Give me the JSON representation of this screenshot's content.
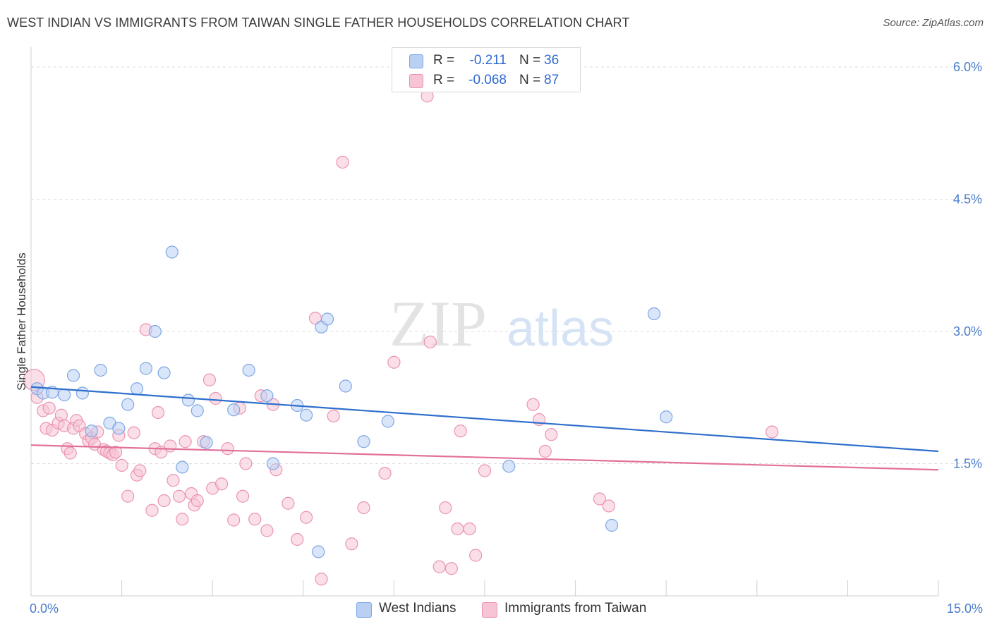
{
  "title": "WEST INDIAN VS IMMIGRANTS FROM TAIWAN SINGLE FATHER HOUSEHOLDS CORRELATION CHART",
  "source": "Source: ZipAtlas.com",
  "watermark": {
    "zip": "ZIP",
    "atlas": "atlas"
  },
  "legend": {
    "series1": {
      "r_label": "R =",
      "r_value": "-0.211",
      "n_label": "N =",
      "n_value": "36"
    },
    "series2": {
      "r_label": "R =",
      "r_value": "-0.068",
      "n_label": "N =",
      "n_value": "87"
    }
  },
  "bottom_legend": {
    "series1": "West Indians",
    "series2": "Immigrants from Taiwan"
  },
  "colors": {
    "blue_fill": "#b9d0f2",
    "blue_stroke": "#7ea7e4",
    "blue_line": "#2e6fcc",
    "pink_fill": "#f6c4d5",
    "pink_stroke": "#eb93b1",
    "pink_line": "#e2709a",
    "grid": "#dddddd",
    "tick_text": "#4a7cc9"
  },
  "chart_data": {
    "type": "scatter",
    "title": "WEST INDIAN VS IMMIGRANTS FROM TAIWAN SINGLE FATHER HOUSEHOLDS CORRELATION CHART",
    "xlabel": "",
    "ylabel": "Single Father Households",
    "xlim": [
      0,
      15
    ],
    "ylim": [
      0,
      6.2
    ],
    "x_tick_labels": [
      "0.0%",
      "15.0%"
    ],
    "y_ticks": [
      1.5,
      3.0,
      4.5,
      6.0
    ],
    "y_tick_labels": [
      "1.5%",
      "3.0%",
      "4.5%",
      "6.0%"
    ],
    "grid": true,
    "legend_position": "top-center",
    "series": [
      {
        "name": "West Indians",
        "trend": [
          [
            0,
            2.37
          ],
          [
            15,
            1.64
          ]
        ],
        "points": [
          [
            0.1,
            2.35
          ],
          [
            0.2,
            2.3
          ],
          [
            0.35,
            2.31
          ],
          [
            0.55,
            2.28
          ],
          [
            0.7,
            2.5
          ],
          [
            0.85,
            2.3
          ],
          [
            1.0,
            1.87
          ],
          [
            1.15,
            2.56
          ],
          [
            1.3,
            1.96
          ],
          [
            1.45,
            1.9
          ],
          [
            1.6,
            2.17
          ],
          [
            1.75,
            2.35
          ],
          [
            1.9,
            2.58
          ],
          [
            2.05,
            3.0
          ],
          [
            2.2,
            2.53
          ],
          [
            2.33,
            3.9
          ],
          [
            2.5,
            1.46
          ],
          [
            2.6,
            2.22
          ],
          [
            2.75,
            2.1
          ],
          [
            2.9,
            1.74
          ],
          [
            3.35,
            2.11
          ],
          [
            3.6,
            2.56
          ],
          [
            3.9,
            2.27
          ],
          [
            4.0,
            1.5
          ],
          [
            4.4,
            2.16
          ],
          [
            4.55,
            2.05
          ],
          [
            4.75,
            0.5
          ],
          [
            4.8,
            3.05
          ],
          [
            4.9,
            3.14
          ],
          [
            5.2,
            2.38
          ],
          [
            5.5,
            1.75
          ],
          [
            5.9,
            1.98
          ],
          [
            7.9,
            1.47
          ],
          [
            9.6,
            0.8
          ],
          [
            10.3,
            3.2
          ],
          [
            10.5,
            2.03
          ]
        ]
      },
      {
        "name": "Immigrants from Taiwan",
        "trend": [
          [
            0,
            1.71
          ],
          [
            15,
            1.43
          ]
        ],
        "points": [
          [
            0.05,
            2.45
          ],
          [
            0.1,
            2.25
          ],
          [
            0.2,
            2.1
          ],
          [
            0.25,
            1.9
          ],
          [
            0.3,
            2.13
          ],
          [
            0.35,
            1.88
          ],
          [
            0.45,
            1.96
          ],
          [
            0.5,
            2.05
          ],
          [
            0.55,
            1.93
          ],
          [
            0.6,
            1.67
          ],
          [
            0.65,
            1.62
          ],
          [
            0.7,
            1.9
          ],
          [
            0.75,
            1.99
          ],
          [
            0.8,
            1.93
          ],
          [
            0.9,
            1.84
          ],
          [
            0.95,
            1.76
          ],
          [
            1.0,
            1.79
          ],
          [
            1.05,
            1.72
          ],
          [
            1.1,
            1.86
          ],
          [
            1.2,
            1.66
          ],
          [
            1.25,
            1.64
          ],
          [
            1.3,
            1.62
          ],
          [
            1.35,
            1.6
          ],
          [
            1.4,
            1.63
          ],
          [
            1.45,
            1.82
          ],
          [
            1.5,
            1.48
          ],
          [
            1.6,
            1.13
          ],
          [
            1.7,
            1.85
          ],
          [
            1.75,
            1.37
          ],
          [
            1.8,
            1.42
          ],
          [
            1.9,
            3.02
          ],
          [
            2.0,
            0.97
          ],
          [
            2.05,
            1.67
          ],
          [
            2.1,
            2.08
          ],
          [
            2.15,
            1.63
          ],
          [
            2.2,
            1.08
          ],
          [
            2.3,
            1.7
          ],
          [
            2.35,
            1.31
          ],
          [
            2.45,
            1.13
          ],
          [
            2.5,
            0.87
          ],
          [
            2.55,
            1.75
          ],
          [
            2.65,
            1.16
          ],
          [
            2.7,
            1.03
          ],
          [
            2.75,
            1.08
          ],
          [
            2.85,
            1.75
          ],
          [
            2.95,
            2.45
          ],
          [
            3.0,
            1.22
          ],
          [
            3.05,
            2.24
          ],
          [
            3.15,
            1.27
          ],
          [
            3.25,
            1.67
          ],
          [
            3.35,
            0.86
          ],
          [
            3.45,
            2.13
          ],
          [
            3.5,
            1.13
          ],
          [
            3.55,
            1.5
          ],
          [
            3.7,
            0.87
          ],
          [
            3.8,
            2.27
          ],
          [
            3.9,
            0.74
          ],
          [
            4.0,
            2.17
          ],
          [
            4.05,
            1.43
          ],
          [
            4.25,
            1.05
          ],
          [
            4.4,
            0.64
          ],
          [
            4.55,
            0.89
          ],
          [
            4.7,
            3.15
          ],
          [
            4.8,
            0.19
          ],
          [
            5.0,
            2.04
          ],
          [
            5.15,
            4.92
          ],
          [
            5.3,
            0.59
          ],
          [
            5.5,
            1.0
          ],
          [
            5.85,
            1.39
          ],
          [
            6.0,
            2.65
          ],
          [
            6.55,
            5.67
          ],
          [
            6.6,
            2.88
          ],
          [
            6.75,
            0.33
          ],
          [
            6.85,
            1.0
          ],
          [
            6.95,
            0.31
          ],
          [
            7.05,
            0.76
          ],
          [
            7.1,
            1.87
          ],
          [
            7.25,
            0.76
          ],
          [
            7.35,
            0.46
          ],
          [
            7.5,
            1.42
          ],
          [
            8.3,
            2.17
          ],
          [
            8.4,
            2.0
          ],
          [
            8.5,
            1.64
          ],
          [
            8.6,
            1.83
          ],
          [
            9.4,
            1.1
          ],
          [
            9.55,
            1.02
          ],
          [
            12.25,
            1.86
          ]
        ]
      }
    ]
  }
}
